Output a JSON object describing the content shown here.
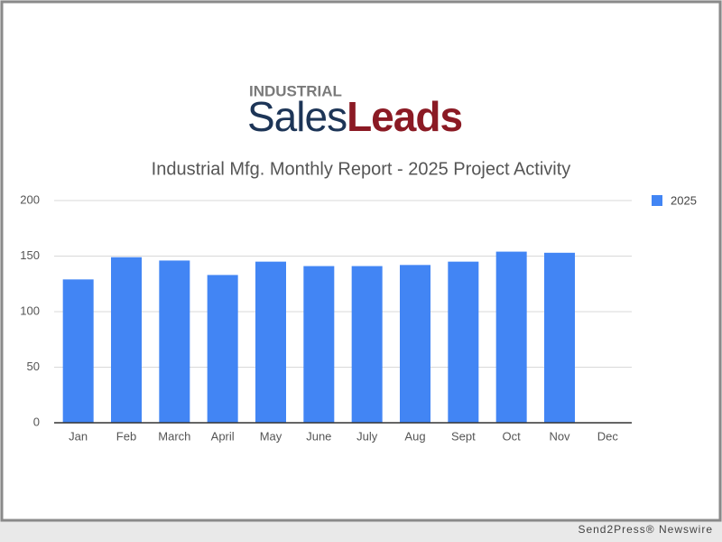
{
  "logo": {
    "top": "INDUSTRIAL",
    "sales": "Sales",
    "leads": "Leads"
  },
  "chart_data": {
    "type": "bar",
    "title": "Industrial Mfg. Monthly Report - 2025 Project Activity",
    "categories": [
      "Jan",
      "Feb",
      "March",
      "April",
      "May",
      "June",
      "July",
      "Aug",
      "Sept",
      "Oct",
      "Nov",
      "Dec"
    ],
    "series": [
      {
        "name": "2025",
        "color": "#4285f4",
        "values": [
          129,
          149,
          146,
          133,
          145,
          141,
          141,
          142,
          145,
          154,
          153,
          null
        ]
      }
    ],
    "ylim": [
      0,
      200
    ],
    "yticks": [
      0,
      50,
      100,
      150,
      200
    ],
    "grid": true,
    "legend": "right"
  },
  "footer": "Send2Press® Newswire"
}
